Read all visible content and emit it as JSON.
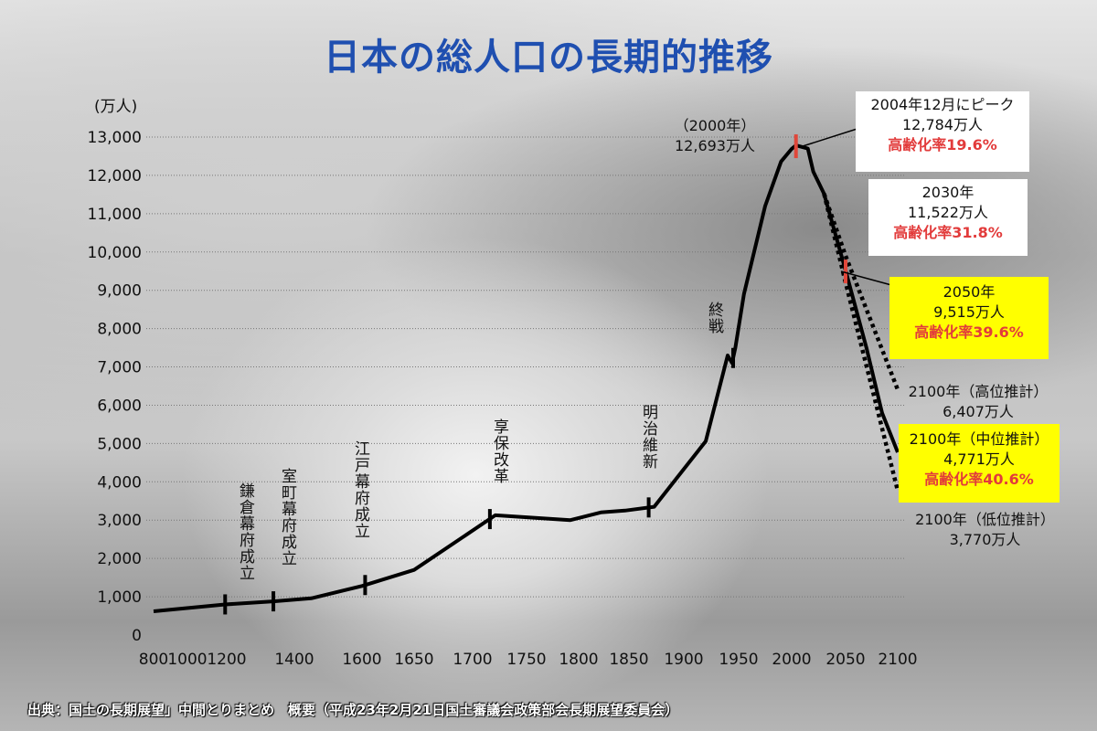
{
  "chart_data": {
    "type": "line",
    "title": "日本の総人口の長期的推移",
    "ylabel": "(万人)",
    "ylim": [
      0,
      13000
    ],
    "yticks": [
      "0",
      "1,000",
      "2,000",
      "3,000",
      "4,000",
      "5,000",
      "6,000",
      "7,000",
      "8,000",
      "9,000",
      "10,000",
      "11,000",
      "12,000",
      "13,000"
    ],
    "xticks": [
      "800",
      "1000",
      "1200",
      "1400",
      "1600",
      "1650",
      "1700",
      "1750",
      "1800",
      "1850",
      "1900",
      "1950",
      "2000",
      "2050",
      "2100"
    ],
    "grid": "horizontal dotted",
    "series": [
      {
        "style": "solid",
        "points": [
          [
            800,
            620
          ],
          [
            1192,
            800
          ],
          [
            1338,
            880
          ],
          [
            1450,
            960
          ],
          [
            1600,
            1280
          ],
          [
            1650,
            1700
          ],
          [
            1721,
            3128
          ],
          [
            1792,
            3000
          ],
          [
            1822,
            3200
          ],
          [
            1846,
            3250
          ],
          [
            1873,
            3350
          ],
          [
            1920,
            5060
          ],
          [
            1940,
            7300
          ],
          [
            1944,
            7100
          ],
          [
            1947,
            7500
          ],
          [
            1955,
            8900
          ],
          [
            1975,
            11200
          ],
          [
            1990,
            12361
          ],
          [
            2000,
            12693
          ],
          [
            2004,
            12784
          ],
          [
            2015,
            12700
          ],
          [
            2020,
            12100
          ],
          [
            2030,
            11522
          ],
          [
            2050,
            9515
          ],
          [
            2070,
            7500
          ],
          [
            2085,
            5800
          ],
          [
            2100,
            4771
          ]
        ]
      },
      {
        "style": "dotted",
        "name": "高位推計",
        "points": [
          [
            2030,
            11522
          ],
          [
            2050,
            9900
          ],
          [
            2100,
            6407
          ]
        ]
      },
      {
        "style": "dotted",
        "name": "低位推計",
        "points": [
          [
            2030,
            11522
          ],
          [
            2050,
            9200
          ],
          [
            2100,
            3770
          ]
        ]
      }
    ],
    "markers": [
      {
        "year": 2004,
        "color": "#e0473a"
      },
      {
        "year": 2050,
        "color": "#e0473a"
      }
    ],
    "events": [
      {
        "year": 1192,
        "label": "鎌倉幕府成立"
      },
      {
        "year": 1338,
        "label": "室町幕府成立"
      },
      {
        "year": 1603,
        "label": "江戸幕府成立"
      },
      {
        "year": 1716,
        "label": "享保改革"
      },
      {
        "year": 1868,
        "label": "明治維新"
      },
      {
        "year": 1945,
        "label": "終戦"
      }
    ],
    "annotations": {
      "y2000": {
        "line1": "（2000年）",
        "line2": "12,693万人"
      },
      "peak": {
        "line1": "2004年12月にピーク",
        "line2": "12,784万人",
        "rate": "高齢化率19.6%"
      },
      "y2030": {
        "line1": "2030年",
        "line2": "11,522万人",
        "rate": "高齢化率31.8%"
      },
      "y2050": {
        "line1": "2050年",
        "line2": "9,515万人",
        "rate": "高齢化率39.6%"
      },
      "high2100": {
        "line1": "2100年（高位推計）",
        "line2": "6,407万人"
      },
      "mid2100": {
        "line1": "2100年（中位推計）",
        "line2": "4,771万人",
        "rate": "高齢化率40.6%"
      },
      "low2100": {
        "line1": "2100年（低位推計）",
        "line2": "3,770万人"
      }
    },
    "colors": {
      "title": "#1f4fb0",
      "rate": "#e23b3b",
      "highlight": "#ffff00",
      "zero_label": "#1f4fb0"
    }
  },
  "source": "出典：国土の長期展望」中間とりまとめ　概要（平成23年2月21日国土審議会政策部会長期展望委員会）"
}
